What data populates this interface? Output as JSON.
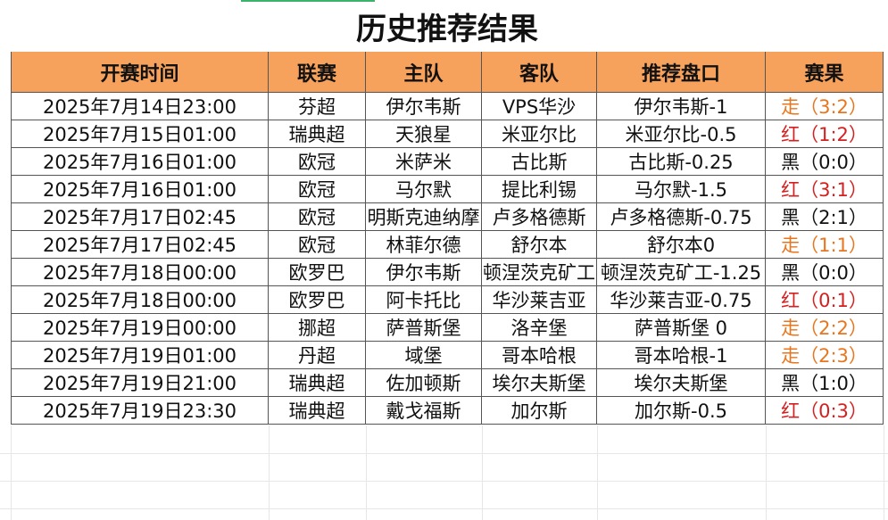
{
  "header": {
    "title": "历史推荐结果"
  },
  "table": {
    "columns": [
      "开赛时间",
      "联赛",
      "主队",
      "客队",
      "推荐盘口",
      "赛果"
    ],
    "rows": [
      [
        "2025年7月14日23:00",
        "芬超",
        "伊尔韦斯",
        "VPS华沙",
        "伊尔韦斯-1",
        "走（3:2）"
      ],
      [
        "2025年7月15日01:00",
        "瑞典超",
        "天狼星",
        "米亚尔比",
        "米亚尔比-0.5",
        "红（1:2）"
      ],
      [
        "2025年7月16日01:00",
        "欧冠",
        "米萨米",
        "古比斯",
        "古比斯-0.25",
        "黑（0:0）"
      ],
      [
        "2025年7月16日01:00",
        "欧冠",
        "马尔默",
        "提比利锡",
        "马尔默-1.5",
        "红（3:1）"
      ],
      [
        "2025年7月17日02:45",
        "欧冠",
        "明斯克迪纳摩",
        "卢多格德斯",
        "卢多格德斯-0.75",
        "黑（2:1）"
      ],
      [
        "2025年7月17日02:45",
        "欧冠",
        "林菲尔德",
        "舒尔本",
        "舒尔本0",
        "走（1:1）"
      ],
      [
        "2025年7月18日00:00",
        "欧罗巴",
        "伊尔韦斯",
        "顿涅茨克矿工",
        "顿涅茨克矿工-1.25",
        "黑（0:0）"
      ],
      [
        "2025年7月18日00:00",
        "欧罗巴",
        "阿卡托比",
        "华沙莱吉亚",
        "华沙莱吉亚-0.75",
        "红（0:1）"
      ],
      [
        "2025年7月19日00:00",
        "挪超",
        "萨普斯堡",
        "洛辛堡",
        "萨普斯堡 0",
        "走（2:2）"
      ],
      [
        "2025年7月19日01:00",
        "丹超",
        "域堡",
        "哥本哈根",
        "哥本哈根-1",
        "走（2:3）"
      ],
      [
        "2025年7月19日21:00",
        "瑞典超",
        "佐加顿斯",
        "埃尔夫斯堡",
        "埃尔夫斯堡",
        "黑（1:0）"
      ],
      [
        "2025年7月19日23:30",
        "瑞典超",
        "戴戈福斯",
        "加尔斯",
        "加尔斯-0.5",
        "红（0:3）"
      ]
    ],
    "result_colors": [
      "#e8761e",
      "#d42020",
      "#111111",
      "#d42020",
      "#111111",
      "#e8761e",
      "#111111",
      "#d42020",
      "#e8761e",
      "#e8761e",
      "#111111",
      "#d42020"
    ]
  }
}
